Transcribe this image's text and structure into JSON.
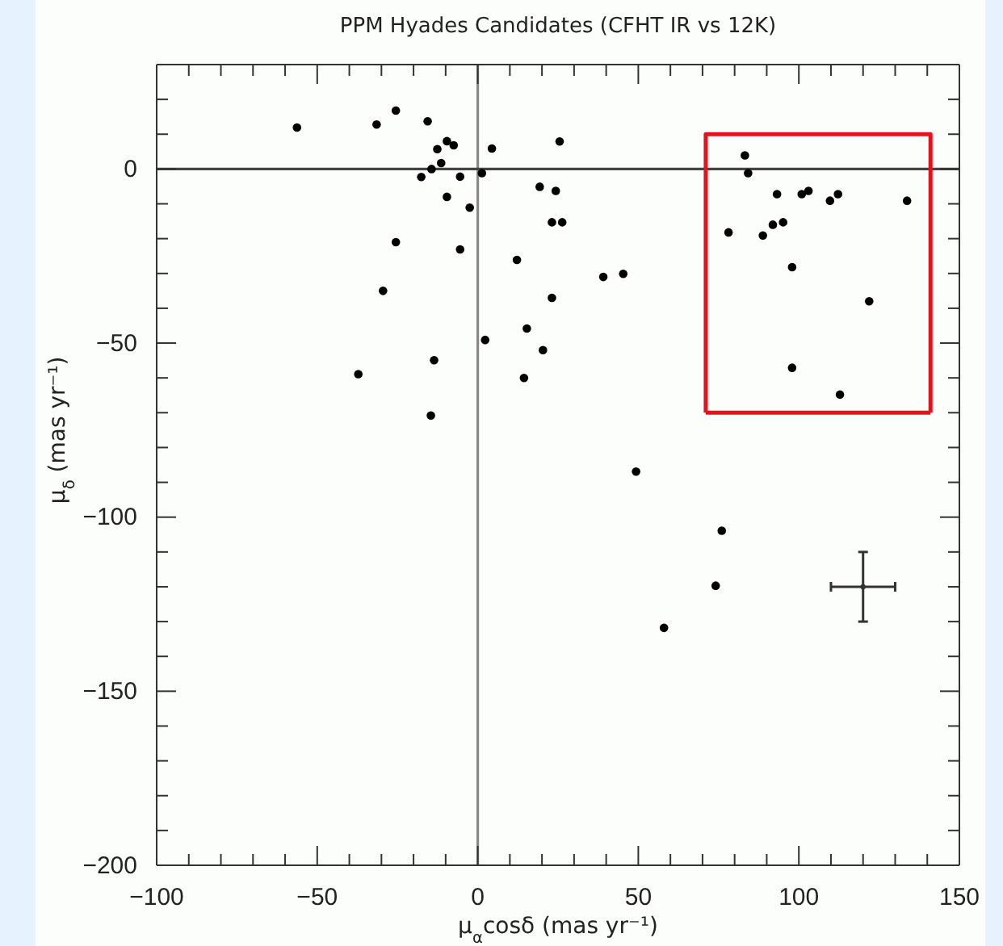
{
  "chart_data": {
    "type": "scatter",
    "title": "PPM Hyades Candidates (CFHT IR vs 12K)",
    "xlabel": "μ$_{α}$cosδ  (mas yr⁻¹)",
    "ylabel": "μ$_{δ}$ (mas yr⁻¹)",
    "xlim": [
      -100,
      150
    ],
    "ylim": [
      -200,
      30
    ],
    "xticks": [
      -100,
      {
        "value": -90,
        "label": null
      },
      {
        "value": -80,
        "label": null
      },
      {
        "value": -70,
        "label": null
      },
      {
        "value": -60,
        "label": null
      },
      -50,
      {
        "value": -40,
        "label": null
      },
      {
        "value": -30,
        "label": null
      },
      {
        "value": -20,
        "label": null
      },
      {
        "value": -10,
        "label": null
      },
      0,
      {
        "value": 10,
        "label": null
      },
      {
        "value": 20,
        "label": null
      },
      {
        "value": 30,
        "label": null
      },
      {
        "value": 40,
        "label": null
      },
      50,
      {
        "value": 60,
        "label": null
      },
      {
        "value": 70,
        "label": null
      },
      {
        "value": 80,
        "label": null
      },
      {
        "value": 90,
        "label": null
      },
      100,
      {
        "value": 110,
        "label": null
      },
      {
        "value": 120,
        "label": null
      },
      {
        "value": 130,
        "label": null
      },
      {
        "value": 140,
        "label": null
      },
      150
    ],
    "yticks": [
      -200,
      {
        "value": -190,
        "label": null
      },
      {
        "value": -180,
        "label": null
      },
      {
        "value": -170,
        "label": null
      },
      {
        "value": -160,
        "label": null
      },
      -150,
      {
        "value": -140,
        "label": null
      },
      {
        "value": -130,
        "label": null
      },
      {
        "value": -120,
        "label": null
      },
      {
        "value": -110,
        "label": null
      },
      -100,
      {
        "value": -90,
        "label": null
      },
      {
        "value": -80,
        "label": null
      },
      {
        "value": -70,
        "label": null
      },
      {
        "value": -60,
        "label": null
      },
      -50,
      {
        "value": -40,
        "label": null
      },
      {
        "value": -30,
        "label": null
      },
      {
        "value": -20,
        "label": null
      },
      {
        "value": -10,
        "label": null
      },
      0,
      {
        "value": 10,
        "label": null
      },
      {
        "value": 20,
        "label": null
      }
    ],
    "grid": false,
    "ref_lines": [
      {
        "axis": "x",
        "value": 0,
        "color": "#888888"
      },
      {
        "axis": "y",
        "value": 0,
        "color": "#444444"
      }
    ],
    "series": [
      {
        "color": "#000000",
        "marker": "circle",
        "x": [
          -56.3,
          -25.5,
          -31.5,
          -15.6,
          -9.6,
          -7.5,
          -12.6,
          4.4,
          25.5,
          -11.4,
          -14.4,
          -17.6,
          -5.5,
          1.3,
          -9.6,
          -2.5,
          19.3,
          24.3,
          23.1,
          26.3,
          -25.5,
          -5.5,
          12.2,
          -29.5,
          23.1,
          15.3,
          2.3,
          20.3,
          -13.6,
          -37.2,
          14.4,
          -14.6,
          39.1,
          45.3,
          83.2,
          84.2,
          78.1,
          93.2,
          100.9,
          103.0,
          109.7,
          112.2,
          133.7,
          91.9,
          95.1,
          88.8,
          97.9,
          121.9,
          97.9,
          112.8,
          49.3,
          76.0,
          74.1,
          58.0
        ],
        "values": [
          11.9,
          16.8,
          12.8,
          13.7,
          8.0,
          6.8,
          5.7,
          5.9,
          7.9,
          1.7,
          0,
          -2.3,
          -2.2,
          -1.2,
          -8.0,
          -11.1,
          -5.1,
          -6.3,
          -15.3,
          -15.3,
          -21.0,
          -23.1,
          -26.1,
          -35.0,
          -37.0,
          -45.8,
          -49.1,
          -52.0,
          -54.9,
          -58.9,
          -60.0,
          -70.8,
          -31.0,
          -30.1,
          3.9,
          -1.2,
          -18.2,
          -7.2,
          -7.2,
          -6.3,
          -9.1,
          -7.2,
          -9.1,
          -16.0,
          -15.3,
          -19.1,
          -28.2,
          -38.0,
          -57.1,
          -64.8,
          -86.9,
          -103.9,
          -119.7,
          -131.8
        ]
      },
      {
        "type": "scatter",
        "color": "#333333",
        "marker": "circle",
        "x": [
          120
        ],
        "values": [
          -120
        ],
        "errors": [
          10
        ],
        "xerrors": [
          10
        ]
      },
      {
        "type": "line",
        "color": "#e8101a",
        "marker": "none",
        "line_style": "solid",
        "x": [
          71,
          71,
          141,
          141
        ],
        "values": [
          -70,
          10,
          10,
          -70
        ]
      },
      {
        "type": "line",
        "color": "#e8101a",
        "marker": "none",
        "line_style": "solid",
        "x": [
          71,
          141
        ],
        "values": [
          -70,
          -70
        ]
      }
    ]
  }
}
